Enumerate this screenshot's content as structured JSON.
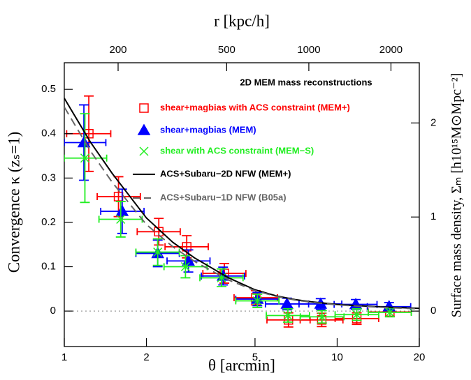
{
  "chart_data": {
    "type": "errorbar",
    "xlabel": "θ [arcmin]",
    "ylabel": "Convergence κ (zₛ=1)",
    "y2label": "Surface mass density, Σₘ [h10¹⁵M⊙Mpc⁻²]",
    "x2label": "r [kpc/h]",
    "legend_title": "2D MEM mass reconstructions",
    "legend": "upper right",
    "xscale": "log",
    "xlim": [
      1,
      20
    ],
    "xticks": [
      1,
      2,
      5,
      10,
      20
    ],
    "x2lim": [
      127,
      2540
    ],
    "x2ticks": [
      200,
      500,
      1000,
      2000
    ],
    "ylim": [
      -0.08,
      0.56
    ],
    "yticks": [
      0,
      0.1,
      0.2,
      0.3,
      0.4,
      0.5
    ],
    "y2lim": [
      -0.377,
      2.64
    ],
    "y2ticks": [
      0,
      1,
      2
    ],
    "hline": 0,
    "series": [
      {
        "name": "shear+magbias with ACS constraint (MEM+)",
        "color": "#ff0000",
        "marker": "square",
        "x": [
          1.23,
          1.58,
          2.22,
          2.81,
          3.86,
          5.03,
          6.63,
          8.78,
          11.8,
          15.6
        ],
        "values": [
          0.4,
          0.258,
          0.179,
          0.145,
          0.085,
          0.03,
          -0.02,
          -0.02,
          -0.017,
          -0.002
        ],
        "yerr": [
          0.085,
          0.045,
          0.03,
          0.025,
          0.022,
          0.016,
          0.016,
          0.015,
          0.013,
          0.01
        ],
        "x_lo": [
          1.02,
          1.32,
          1.85,
          2.34,
          3.22,
          4.19,
          5.53,
          7.32,
          9.83,
          13.0
        ],
        "x_hi": [
          1.48,
          1.9,
          2.66,
          3.37,
          4.63,
          6.04,
          7.96,
          10.5,
          14.2,
          18.7
        ]
      },
      {
        "name": "shear+magbias (MEM)",
        "color": "#0000ff",
        "marker": "triangle",
        "x": [
          1.18,
          1.63,
          2.2,
          2.85,
          3.82,
          5.1,
          6.55,
          8.7,
          11.7,
          15.5
        ],
        "values": [
          0.38,
          0.225,
          0.13,
          0.113,
          0.079,
          0.027,
          0.016,
          0.016,
          0.015,
          0.01
        ],
        "yerr": [
          0.085,
          0.05,
          0.03,
          0.025,
          0.02,
          0.015,
          0.013,
          0.012,
          0.011,
          0.009
        ],
        "x_lo": [
          1.0,
          1.36,
          1.83,
          2.38,
          3.18,
          4.25,
          5.46,
          7.25,
          9.75,
          12.9
        ],
        "x_hi": [
          1.42,
          1.96,
          2.64,
          3.42,
          4.58,
          6.12,
          7.86,
          10.4,
          14.0,
          18.6
        ]
      },
      {
        "name": "shear with ACS constraint (MEM−S)",
        "color": "#22ee22",
        "marker": "cross",
        "x": [
          1.19,
          1.61,
          2.2,
          2.78,
          3.77,
          5.1,
          6.6,
          8.8,
          11.8,
          15.6
        ],
        "values": [
          0.345,
          0.207,
          0.133,
          0.1,
          0.075,
          0.023,
          -0.01,
          -0.013,
          -0.008,
          -0.003
        ],
        "yerr": [
          0.1,
          0.04,
          0.03,
          0.025,
          0.02,
          0.015,
          0.015,
          0.014,
          0.013,
          0.01
        ],
        "x_lo": [
          1.0,
          1.34,
          1.83,
          2.32,
          3.14,
          4.25,
          5.5,
          7.33,
          9.83,
          13.0
        ],
        "x_hi": [
          1.43,
          1.93,
          2.64,
          3.34,
          4.52,
          6.12,
          7.92,
          10.6,
          14.2,
          18.7
        ]
      },
      {
        "name": "ACS+Subaru−2D NFW (MEM+)",
        "color": "#000000",
        "marker": "line",
        "x": [
          1,
          1.25,
          1.5,
          2,
          2.5,
          3,
          4,
          5,
          6,
          7,
          8,
          10,
          12,
          15,
          20
        ],
        "values": [
          0.48,
          0.38,
          0.31,
          0.21,
          0.155,
          0.12,
          0.075,
          0.048,
          0.034,
          0.026,
          0.021,
          0.015,
          0.012,
          0.009,
          0.006
        ]
      },
      {
        "name": "ACS+Subaru−1D NFW (B05a)",
        "color": "#666666",
        "marker": "dashed",
        "x": [
          1,
          1.25,
          1.5,
          2,
          2.5,
          3,
          4,
          5,
          6,
          7,
          8,
          10,
          12,
          15,
          20
        ],
        "values": [
          0.46,
          0.36,
          0.29,
          0.195,
          0.145,
          0.112,
          0.07,
          0.046,
          0.033,
          0.025,
          0.02,
          0.014,
          0.011,
          0.008,
          0.005
        ]
      }
    ]
  }
}
